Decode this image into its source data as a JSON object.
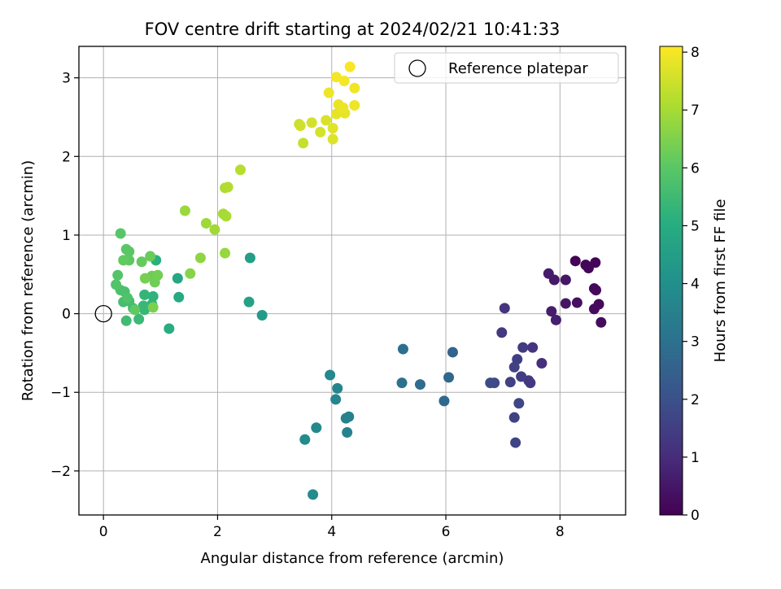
{
  "chart_data": {
    "type": "scatter",
    "title": "FOV centre drift starting at 2024/02/21 10:41:33",
    "xlabel": "Angular distance from reference (arcmin)",
    "ylabel": "Rotation from reference (arcmin)",
    "xlim": [
      -0.43,
      9.15
    ],
    "ylim": [
      -2.56,
      3.4
    ],
    "xticks": [
      0,
      2,
      4,
      6,
      8
    ],
    "xtick_labels": [
      "0",
      "2",
      "4",
      "6",
      "8"
    ],
    "yticks": [
      -2,
      -1,
      0,
      1,
      2,
      3
    ],
    "ytick_labels": [
      "−2",
      "−1",
      "0",
      "1",
      "2",
      "3"
    ],
    "grid": true,
    "legend": {
      "placement": "top-right",
      "entries": [
        "Reference platepar"
      ]
    },
    "colorbar": {
      "label": "Hours from first FF file",
      "range": [
        0,
        8.1
      ],
      "ticks": [
        0,
        1,
        2,
        3,
        4,
        5,
        6,
        7,
        8
      ],
      "tick_labels": [
        "0",
        "1",
        "2",
        "3",
        "4",
        "5",
        "6",
        "7",
        "8"
      ],
      "colormap": "viridis"
    },
    "reference_point": {
      "name": "Reference platepar",
      "x": 0,
      "y": 0
    },
    "points": [
      {
        "x": 8.27,
        "y": 0.67,
        "c": 0.05
      },
      {
        "x": 8.45,
        "y": 0.62,
        "c": 0.08
      },
      {
        "x": 8.62,
        "y": 0.65,
        "c": 0.1
      },
      {
        "x": 8.5,
        "y": 0.58,
        "c": 0.12
      },
      {
        "x": 8.6,
        "y": 0.32,
        "c": 0.15
      },
      {
        "x": 8.63,
        "y": 0.3,
        "c": 0.18
      },
      {
        "x": 8.68,
        "y": 0.12,
        "c": 0.2
      },
      {
        "x": 8.6,
        "y": 0.06,
        "c": 0.22
      },
      {
        "x": 8.72,
        "y": -0.11,
        "c": 0.25
      },
      {
        "x": 8.3,
        "y": 0.14,
        "c": 0.35
      },
      {
        "x": 8.1,
        "y": 0.13,
        "c": 0.45
      },
      {
        "x": 8.1,
        "y": 0.43,
        "c": 0.5
      },
      {
        "x": 7.9,
        "y": 0.43,
        "c": 0.55
      },
      {
        "x": 7.8,
        "y": 0.51,
        "c": 0.6
      },
      {
        "x": 7.85,
        "y": 0.03,
        "c": 0.65
      },
      {
        "x": 7.93,
        "y": -0.08,
        "c": 0.7
      },
      {
        "x": 7.68,
        "y": -0.63,
        "c": 1.1
      },
      {
        "x": 7.52,
        "y": -0.43,
        "c": 1.2
      },
      {
        "x": 7.45,
        "y": -0.85,
        "c": 1.3
      },
      {
        "x": 7.48,
        "y": -0.88,
        "c": 1.35
      },
      {
        "x": 7.35,
        "y": -0.43,
        "c": 1.4
      },
      {
        "x": 7.32,
        "y": -0.8,
        "c": 1.45
      },
      {
        "x": 7.25,
        "y": -0.58,
        "c": 1.5
      },
      {
        "x": 7.2,
        "y": -0.68,
        "c": 1.55
      },
      {
        "x": 7.13,
        "y": -0.87,
        "c": 1.6
      },
      {
        "x": 7.03,
        "y": 0.07,
        "c": 1.2
      },
      {
        "x": 6.98,
        "y": -0.24,
        "c": 1.3
      },
      {
        "x": 7.2,
        "y": -1.32,
        "c": 1.6
      },
      {
        "x": 7.22,
        "y": -1.64,
        "c": 1.65
      },
      {
        "x": 7.28,
        "y": -1.14,
        "c": 1.7
      },
      {
        "x": 6.85,
        "y": -0.88,
        "c": 1.8
      },
      {
        "x": 6.78,
        "y": -0.88,
        "c": 1.85
      },
      {
        "x": 6.12,
        "y": -0.49,
        "c": 2.6
      },
      {
        "x": 6.05,
        "y": -0.81,
        "c": 2.7
      },
      {
        "x": 5.97,
        "y": -1.11,
        "c": 2.75
      },
      {
        "x": 5.55,
        "y": -0.9,
        "c": 2.85
      },
      {
        "x": 5.25,
        "y": -0.45,
        "c": 2.95
      },
      {
        "x": 5.23,
        "y": -0.88,
        "c": 3.0
      },
      {
        "x": 4.3,
        "y": -1.31,
        "c": 3.5
      },
      {
        "x": 4.25,
        "y": -1.33,
        "c": 3.55
      },
      {
        "x": 4.27,
        "y": -1.51,
        "c": 3.6
      },
      {
        "x": 4.1,
        "y": -0.95,
        "c": 3.65
      },
      {
        "x": 4.07,
        "y": -1.09,
        "c": 3.7
      },
      {
        "x": 3.97,
        "y": -0.78,
        "c": 3.75
      },
      {
        "x": 3.73,
        "y": -1.45,
        "c": 3.8
      },
      {
        "x": 3.53,
        "y": -1.6,
        "c": 3.85
      },
      {
        "x": 3.67,
        "y": -2.3,
        "c": 3.9
      },
      {
        "x": 2.78,
        "y": -0.02,
        "c": 4.4
      },
      {
        "x": 2.57,
        "y": 0.71,
        "c": 4.5
      },
      {
        "x": 2.55,
        "y": 0.15,
        "c": 4.6
      },
      {
        "x": 1.3,
        "y": 0.45,
        "c": 4.8
      },
      {
        "x": 1.32,
        "y": 0.21,
        "c": 4.9
      },
      {
        "x": 1.15,
        "y": -0.19,
        "c": 5.0
      },
      {
        "x": 0.92,
        "y": 0.68,
        "c": 5.1
      },
      {
        "x": 0.87,
        "y": 0.22,
        "c": 5.2
      },
      {
        "x": 0.85,
        "y": 0.12,
        "c": 5.25
      },
      {
        "x": 0.72,
        "y": 0.24,
        "c": 5.3
      },
      {
        "x": 0.72,
        "y": 0.05,
        "c": 5.35
      },
      {
        "x": 0.7,
        "y": 0.1,
        "c": 5.4
      },
      {
        "x": 0.62,
        "y": -0.07,
        "c": 5.45
      },
      {
        "x": 0.52,
        "y": 0.07,
        "c": 5.5
      },
      {
        "x": 0.4,
        "y": -0.09,
        "c": 5.55
      },
      {
        "x": 0.45,
        "y": 0.16,
        "c": 5.6
      },
      {
        "x": 0.35,
        "y": 0.15,
        "c": 5.65
      },
      {
        "x": 0.37,
        "y": 0.28,
        "c": 5.7
      },
      {
        "x": 0.3,
        "y": 0.3,
        "c": 5.75
      },
      {
        "x": 0.42,
        "y": 0.2,
        "c": 5.8
      },
      {
        "x": 0.22,
        "y": 0.37,
        "c": 5.85
      },
      {
        "x": 0.25,
        "y": 0.49,
        "c": 5.9
      },
      {
        "x": 0.3,
        "y": 1.02,
        "c": 5.95
      },
      {
        "x": 0.4,
        "y": 0.82,
        "c": 6.0
      },
      {
        "x": 0.45,
        "y": 0.79,
        "c": 6.0
      },
      {
        "x": 0.45,
        "y": 0.68,
        "c": 6.05
      },
      {
        "x": 0.35,
        "y": 0.68,
        "c": 6.1
      },
      {
        "x": 0.55,
        "y": 0.05,
        "c": 6.1
      },
      {
        "x": 0.67,
        "y": 0.66,
        "c": 6.15
      },
      {
        "x": 0.82,
        "y": 0.73,
        "c": 6.2
      },
      {
        "x": 0.85,
        "y": 0.48,
        "c": 6.25
      },
      {
        "x": 0.9,
        "y": 0.4,
        "c": 6.3
      },
      {
        "x": 0.95,
        "y": 0.49,
        "c": 6.35
      },
      {
        "x": 0.73,
        "y": 0.45,
        "c": 6.4
      },
      {
        "x": 0.87,
        "y": 0.08,
        "c": 6.45
      },
      {
        "x": 1.52,
        "y": 0.51,
        "c": 6.6
      },
      {
        "x": 1.7,
        "y": 0.71,
        "c": 6.7
      },
      {
        "x": 2.13,
        "y": 0.77,
        "c": 6.8
      },
      {
        "x": 1.43,
        "y": 1.31,
        "c": 6.85
      },
      {
        "x": 1.8,
        "y": 1.15,
        "c": 6.9
      },
      {
        "x": 1.95,
        "y": 1.07,
        "c": 6.95
      },
      {
        "x": 2.1,
        "y": 1.27,
        "c": 7.0
      },
      {
        "x": 2.15,
        "y": 1.24,
        "c": 7.05
      },
      {
        "x": 2.13,
        "y": 1.6,
        "c": 7.1
      },
      {
        "x": 2.18,
        "y": 1.61,
        "c": 7.15
      },
      {
        "x": 2.4,
        "y": 1.83,
        "c": 7.2
      },
      {
        "x": 3.5,
        "y": 2.17,
        "c": 7.4
      },
      {
        "x": 3.43,
        "y": 2.41,
        "c": 7.45
      },
      {
        "x": 3.45,
        "y": 2.39,
        "c": 7.5
      },
      {
        "x": 3.65,
        "y": 2.43,
        "c": 7.55
      },
      {
        "x": 3.8,
        "y": 2.31,
        "c": 7.6
      },
      {
        "x": 3.9,
        "y": 2.46,
        "c": 7.65
      },
      {
        "x": 4.02,
        "y": 2.22,
        "c": 7.7
      },
      {
        "x": 4.02,
        "y": 2.36,
        "c": 7.75
      },
      {
        "x": 4.08,
        "y": 2.54,
        "c": 7.8
      },
      {
        "x": 4.23,
        "y": 2.55,
        "c": 7.82
      },
      {
        "x": 4.12,
        "y": 2.66,
        "c": 7.85
      },
      {
        "x": 4.2,
        "y": 2.62,
        "c": 7.88
      },
      {
        "x": 3.95,
        "y": 2.81,
        "c": 7.9
      },
      {
        "x": 4.4,
        "y": 2.65,
        "c": 7.92
      },
      {
        "x": 4.4,
        "y": 2.87,
        "c": 7.95
      },
      {
        "x": 4.08,
        "y": 3.01,
        "c": 7.97
      },
      {
        "x": 4.22,
        "y": 2.96,
        "c": 8.0
      },
      {
        "x": 4.32,
        "y": 3.14,
        "c": 8.05
      }
    ]
  }
}
